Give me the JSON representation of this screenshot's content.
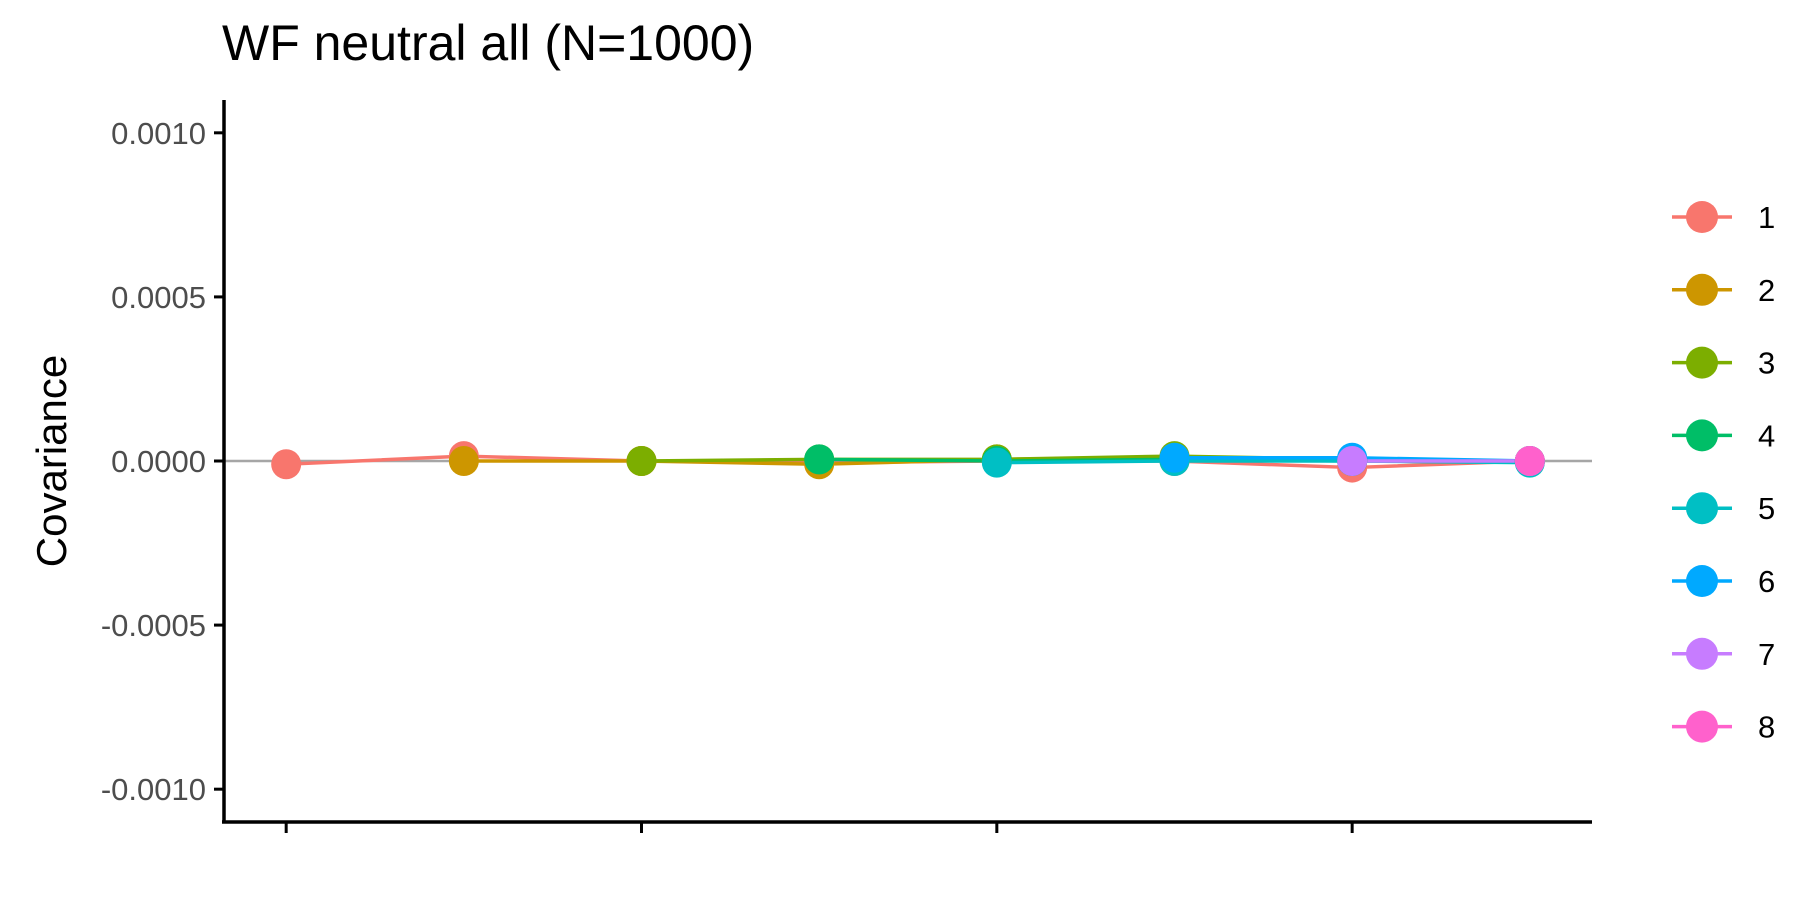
{
  "chart_data": {
    "type": "line",
    "title": "WF neutral all (N=1000)",
    "xlabel": "",
    "ylabel": "Covariance",
    "ylim": [
      -0.0011,
      0.0011
    ],
    "xlim": [
      0.65,
      8.35
    ],
    "yticks": [
      0.001,
      0.0005,
      0,
      -0.0005,
      -0.001
    ],
    "ytick_labels": [
      "0.0010",
      "0.0005",
      "0.0000",
      "-0.0005",
      "-0.0010"
    ],
    "xticks": [
      1,
      3,
      5,
      7
    ],
    "xtick_labels": [
      "",
      "",
      "",
      ""
    ],
    "reference_line": {
      "y": 0,
      "color": "#a6a6a6"
    },
    "legend_placement": "right",
    "grid": false,
    "series": [
      {
        "name": "1",
        "color": "#F8766D",
        "x": [
          1,
          2,
          3,
          4,
          5,
          6,
          7,
          8
        ],
        "values": [
          -1e-05,
          1.5e-05,
          0.0,
          -5e-06,
          0.0,
          0.0,
          -2e-05,
          0.0
        ]
      },
      {
        "name": "2",
        "color": "#CD9600",
        "x": [
          2,
          3,
          4,
          5,
          6,
          7,
          8
        ],
        "values": [
          0.0,
          0.0,
          -1e-05,
          5e-06,
          1e-05,
          0.0,
          0.0
        ]
      },
      {
        "name": "3",
        "color": "#7CAE00",
        "x": [
          3,
          4,
          5,
          6,
          7,
          8
        ],
        "values": [
          0.0,
          5e-06,
          5e-06,
          1.5e-05,
          5e-06,
          0.0
        ]
      },
      {
        "name": "4",
        "color": "#00BE67",
        "x": [
          4,
          5,
          6,
          7,
          8
        ],
        "values": [
          5e-06,
          0.0,
          5e-06,
          0.0,
          0.0
        ]
      },
      {
        "name": "5",
        "color": "#00BFC4",
        "x": [
          5,
          6,
          7,
          8
        ],
        "values": [
          -5e-06,
          0.0,
          0.0,
          -5e-06
        ]
      },
      {
        "name": "6",
        "color": "#00A9FF",
        "x": [
          6,
          7,
          8
        ],
        "values": [
          1e-05,
          1e-05,
          0.0
        ]
      },
      {
        "name": "7",
        "color": "#C77CFF",
        "x": [
          7,
          8
        ],
        "values": [
          0.0,
          0.0
        ]
      },
      {
        "name": "8",
        "color": "#FF61CC",
        "x": [
          8
        ],
        "values": [
          0.0
        ]
      }
    ]
  }
}
